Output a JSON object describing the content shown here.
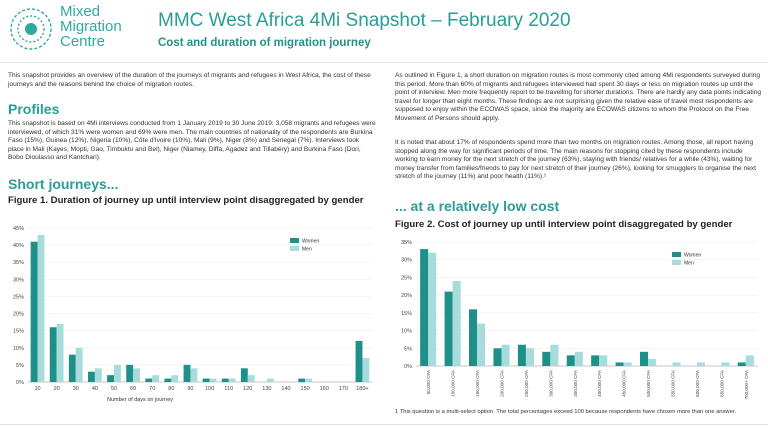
{
  "header": {
    "logo_lines": [
      "Mixed",
      "Migration",
      "Centre"
    ],
    "title": "MMC West Africa 4Mi Snapshot – February 2020",
    "subtitle": "Cost and duration of migration journey"
  },
  "left": {
    "intro": "This snapshot provides an overview of the duration of the journeys of migrants and refugees in West Africa, the cost of these journeys and the reasons behind the choice of migration routes.",
    "profiles_heading": "Profiles",
    "profiles_text": "This snapshot is based on 4Mi interviews conducted from 1 January 2019 to 30 June 2019: 3,058 migrants and refugees were interviewed, of which 31% were women and 69% were men. The main countries of nationality of the respondents are Burkina Faso (15%), Guinea (12%), Nigeria (10%), Côte d'Ivoire (10%), Mali (9%), Niger (8%) and Senegal (7%). Interviews took place in Mali (Kayes, Mopti, Gao, Timbuktu and Bel), Niger (Niamey, Diffa, Agadez and Tillabéry) and Burkina Faso (Dori, Bobo Dioulasso and Kantchari).",
    "short_heading": "Short journeys...",
    "fig1_title": "Figure 1. Duration of journey up until interview point disaggregated by gender"
  },
  "right": {
    "para1": "As outlined in Figure 1, a short duration on migration routes is most commonly cited among 4Mi respondents surveyed during this period. More than 60% of migrants and refugees interviewed had spent 30 days or less on migration routes up until the point of interview. Men more frequently report to be travelling for shorter durations. There are hardly any data points indicating travel for longer than eight months. These findings are not surprising given the relative ease of travel most respondents are supposed to enjoy within the ECOWAS space, since the majority are ECOWAS citizens to whom the Protocol on the Free Movement of Persons should apply.",
    "para2": "It is noted that about 17% of respondents spend more than two months on migration routes. Among those, all report having stopped along the way for significant periods of time. The main reasons for stopping cited by these respondents include working to earn money for the next stretch of the journey (63%), staying with friends/ relatives for a while (43%), waiting for money transfer from families/friends to pay for next stretch of their journey (26%), looking for smugglers to organise the next stretch of the journey (11%) and poor health (11%).¹",
    "cost_heading": "... at a relatively low cost",
    "fig2_title": "Figure 2. Cost of journey up until interview point disaggregated by gender",
    "footnote": "1     This question is a multi-select option. The total percentages exceed 100 because respondents have chosen more than one answer."
  },
  "colors": {
    "women": "#1f8f8a",
    "men": "#a8dcdc",
    "accent": "#2a9d98"
  },
  "chart_data": [
    {
      "type": "bar",
      "title": "Figure 1. Duration of journey up until interview point disaggregated by gender",
      "xlabel": "Number of days on journey",
      "ylabel": "",
      "ylim": [
        0,
        45
      ],
      "yticks": [
        "0%",
        "5%",
        "10%",
        "15%",
        "20%",
        "25%",
        "30%",
        "35%",
        "40%",
        "45%"
      ],
      "categories": [
        "10",
        "20",
        "30",
        "40",
        "50",
        "60",
        "70",
        "80",
        "90",
        "100",
        "110",
        "120",
        "130",
        "140",
        "150",
        "160",
        "170",
        "180+"
      ],
      "series": [
        {
          "name": "Women",
          "values": [
            41,
            16,
            8,
            3,
            2,
            5,
            1,
            1,
            5,
            1,
            1,
            4,
            0,
            0,
            1,
            0,
            0,
            12
          ]
        },
        {
          "name": "Men",
          "values": [
            43,
            17,
            10,
            4,
            5,
            4,
            2,
            2,
            4,
            1,
            1,
            2,
            1,
            0,
            1,
            0,
            0,
            7
          ]
        }
      ],
      "legend": "top-right"
    },
    {
      "type": "bar",
      "title": "Figure 2. Cost of journey up until interview point disaggregated by gender",
      "xlabel": "",
      "ylabel": "",
      "ylim": [
        0,
        35
      ],
      "yticks": [
        "0%",
        "5%",
        "10%",
        "15%",
        "20%",
        "25%",
        "30%",
        "35%"
      ],
      "categories": [
        "50,000 CFA",
        "100,000 CFA",
        "150,000 CFA",
        "200,000 CFA",
        "250,000 CFA",
        "300,000 CFA",
        "350,000 CFA",
        "400,000 CFA",
        "450,000 CFA",
        "500,000 CFA",
        "550,000 CFA",
        "600,000 CFA",
        "650,000 CFA",
        "700,000+ CFA"
      ],
      "series": [
        {
          "name": "Women",
          "values": [
            33,
            21,
            16,
            5,
            6,
            4,
            3,
            3,
            1,
            4,
            0,
            0,
            0,
            1
          ]
        },
        {
          "name": "Men",
          "values": [
            32,
            24,
            12,
            6,
            5,
            6,
            4,
            3,
            1,
            2,
            1,
            1,
            1,
            3
          ]
        }
      ],
      "legend": "top-right"
    }
  ]
}
